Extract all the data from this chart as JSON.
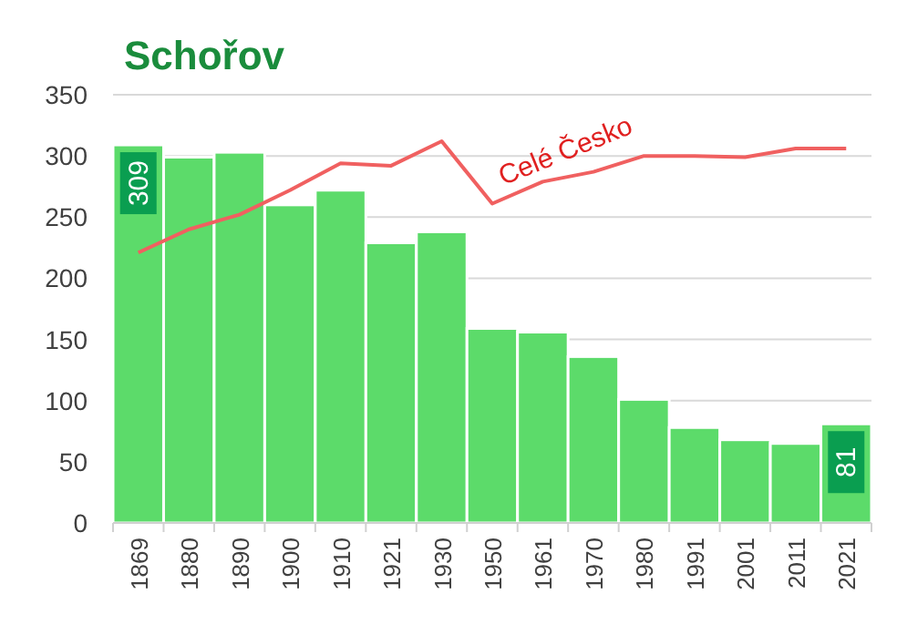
{
  "chart_data": {
    "type": "bar",
    "title": "Schořov",
    "categories": [
      "1869",
      "1880",
      "1890",
      "1900",
      "1910",
      "1921",
      "1930",
      "1950",
      "1961",
      "1970",
      "1980",
      "1991",
      "2001",
      "2011",
      "2021"
    ],
    "ylim": [
      0,
      350
    ],
    "yticks": [
      0,
      50,
      100,
      150,
      200,
      250,
      300,
      350
    ],
    "grid": "y",
    "series": [
      {
        "color": "#5cdb6a",
        "values": [
          309,
          299,
          303,
          260,
          272,
          229,
          238,
          159,
          156,
          136,
          101,
          78,
          68,
          65,
          81
        ],
        "value_labels": [
          "309",
          null,
          null,
          null,
          null,
          null,
          null,
          null,
          null,
          null,
          null,
          null,
          null,
          null,
          "81"
        ]
      },
      {
        "type": "line",
        "name": "Celé Česko",
        "color": "#f06060",
        "values": [
          221,
          240,
          252,
          272,
          294,
          292,
          312,
          261,
          279,
          287,
          300,
          300,
          299,
          306,
          306
        ]
      }
    ]
  }
}
